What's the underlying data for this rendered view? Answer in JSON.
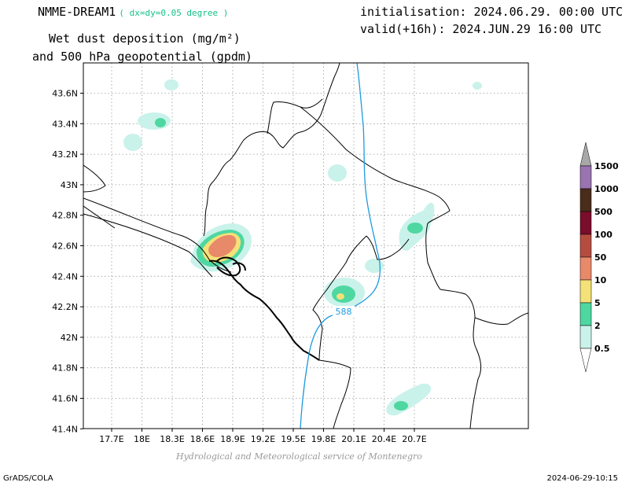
{
  "header": {
    "model": "NMME-DREAM1",
    "resolution": "( dx=dy=0.05 degree )",
    "variable_line1": "Wet dust deposition (mg/m²)",
    "variable_line2": "and 500 hPa geopotential (gpdm)",
    "initialisation": "initialisation: 2024.06.29. 00:00 UTC",
    "valid": "valid(+16h): 2024.JUN.29 16:00 UTC"
  },
  "map": {
    "lon_ticks": [
      "17.7E",
      "18E",
      "18.3E",
      "18.6E",
      "18.9E",
      "19.2E",
      "19.5E",
      "19.8E",
      "20.1E",
      "20.4E",
      "20.7E"
    ],
    "lat_ticks": [
      "43.6N",
      "43.4N",
      "43.2N",
      "43N",
      "42.8N",
      "42.6N",
      "42.4N",
      "42.2N",
      "42N",
      "41.8N",
      "41.6N",
      "41.4N"
    ],
    "contour_label": "588",
    "contour_color": "#1e9be0"
  },
  "colorbar": {
    "levels": [
      "1500",
      "1000",
      "500",
      "100",
      "50",
      "10",
      "5",
      "2",
      "0.5"
    ],
    "colors": {
      "1000-1500": "#9a73b1",
      "500-1000": "#4a2c1b",
      "100-500": "#7a0c2c",
      "50-100": "#b54c40",
      "10-50": "#e8896a",
      "5-10": "#f4e178",
      "2-5": "#4fd7a2",
      "0.5-2": "#c9f2ea",
      "over": "#a8a8a8",
      "under": "#ffffff"
    }
  },
  "footer": {
    "credit": "Hydrological and Meteorological service of Montenegro",
    "software": "GrADS/COLA",
    "timestamp": "2024-06-29-10:15"
  }
}
